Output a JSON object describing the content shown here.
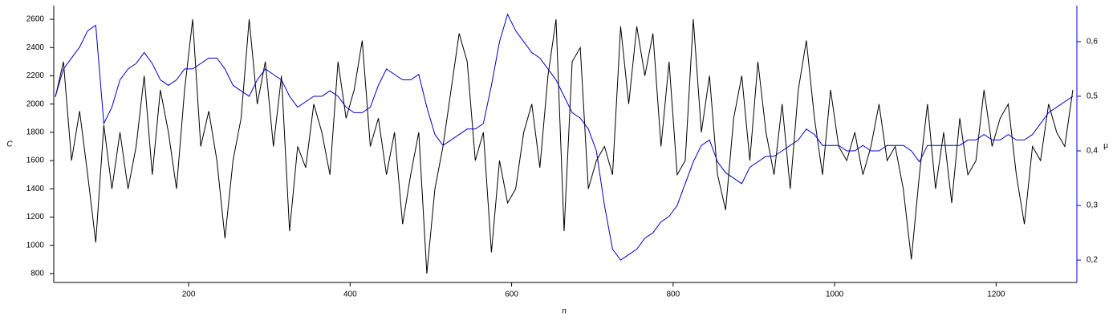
{
  "chart_data": {
    "type": "line",
    "x_label": "n",
    "y_label": "C",
    "y2_label": "μ",
    "x": [
      35,
      45,
      55,
      65,
      75,
      85,
      95,
      105,
      115,
      125,
      135,
      145,
      155,
      165,
      175,
      185,
      195,
      205,
      215,
      225,
      235,
      245,
      255,
      265,
      275,
      285,
      295,
      305,
      315,
      325,
      335,
      345,
      355,
      365,
      375,
      385,
      395,
      405,
      415,
      425,
      435,
      445,
      455,
      465,
      475,
      485,
      495,
      505,
      515,
      525,
      535,
      545,
      555,
      565,
      575,
      585,
      595,
      605,
      615,
      625,
      635,
      645,
      655,
      665,
      675,
      685,
      695,
      705,
      715,
      725,
      735,
      745,
      755,
      765,
      775,
      785,
      795,
      805,
      815,
      825,
      835,
      845,
      855,
      865,
      875,
      885,
      895,
      905,
      915,
      925,
      935,
      945,
      955,
      965,
      975,
      985,
      995,
      1005,
      1015,
      1025,
      1035,
      1045,
      1055,
      1065,
      1075,
      1085,
      1095,
      1105,
      1115,
      1125,
      1135,
      1145,
      1155,
      1165,
      1175,
      1185,
      1195,
      1205,
      1215,
      1225,
      1235,
      1245,
      1255,
      1265,
      1275,
      1285,
      1295
    ],
    "series": [
      {
        "name": "C",
        "color": "#000000",
        "axis": "y",
        "values": [
          2050,
          2300,
          1600,
          1950,
          1500,
          1020,
          1850,
          1400,
          1800,
          1400,
          1700,
          2200,
          1500,
          2100,
          1800,
          1400,
          2100,
          2600,
          1700,
          1950,
          1600,
          1050,
          1600,
          1900,
          2600,
          2000,
          2300,
          1700,
          2200,
          1100,
          1700,
          1550,
          2000,
          1800,
          1500,
          2300,
          1900,
          2100,
          2450,
          1700,
          1900,
          1500,
          1800,
          1150,
          1500,
          1800,
          800,
          1400,
          1700,
          2100,
          2500,
          2300,
          1600,
          1800,
          950,
          1600,
          1300,
          1400,
          1800,
          2000,
          1550,
          2200,
          2600,
          1100,
          2300,
          2400,
          1400,
          1600,
          1700,
          1500,
          2550,
          2000,
          2550,
          2200,
          2500,
          1700,
          2300,
          1500,
          1600,
          2600,
          1800,
          2200,
          1500,
          1250,
          1900,
          2200,
          1600,
          2300,
          1800,
          1500,
          2000,
          1400,
          2100,
          2450,
          1900,
          1500,
          2100,
          1700,
          1600,
          1800,
          1500,
          1700,
          2000,
          1600,
          1700,
          1400,
          900,
          1500,
          2000,
          1400,
          1800,
          1300,
          1900,
          1500,
          1600,
          2100,
          1700,
          1900,
          2000,
          1500,
          1150,
          1700,
          1600,
          2000,
          1800,
          1700,
          2100
        ]
      },
      {
        "name": "μ",
        "color": "#0000c8",
        "axis": "y2",
        "values": [
          0.5,
          0.55,
          0.57,
          0.59,
          0.62,
          0.63,
          0.45,
          0.48,
          0.53,
          0.55,
          0.56,
          0.58,
          0.56,
          0.53,
          0.52,
          0.53,
          0.55,
          0.55,
          0.56,
          0.57,
          0.57,
          0.55,
          0.52,
          0.51,
          0.5,
          0.53,
          0.55,
          0.54,
          0.53,
          0.5,
          0.48,
          0.49,
          0.5,
          0.5,
          0.51,
          0.5,
          0.48,
          0.47,
          0.47,
          0.48,
          0.52,
          0.55,
          0.54,
          0.53,
          0.53,
          0.54,
          0.48,
          0.43,
          0.41,
          0.42,
          0.43,
          0.44,
          0.44,
          0.45,
          0.52,
          0.6,
          0.65,
          0.62,
          0.6,
          0.58,
          0.57,
          0.55,
          0.53,
          0.5,
          0.47,
          0.46,
          0.44,
          0.4,
          0.3,
          0.22,
          0.2,
          0.21,
          0.22,
          0.24,
          0.25,
          0.27,
          0.28,
          0.3,
          0.34,
          0.38,
          0.41,
          0.42,
          0.38,
          0.36,
          0.35,
          0.34,
          0.37,
          0.38,
          0.39,
          0.39,
          0.4,
          0.41,
          0.42,
          0.44,
          0.43,
          0.41,
          0.41,
          0.41,
          0.4,
          0.4,
          0.41,
          0.4,
          0.4,
          0.41,
          0.41,
          0.41,
          0.4,
          0.38,
          0.41,
          0.41,
          0.41,
          0.41,
          0.41,
          0.42,
          0.42,
          0.43,
          0.42,
          0.42,
          0.43,
          0.42,
          0.42,
          0.43,
          0.45,
          0.47,
          0.48,
          0.49,
          0.5
        ]
      }
    ],
    "xlim": [
      33,
      1300
    ],
    "xticks": [
      200,
      400,
      600,
      800,
      1000,
      1200
    ],
    "ylim": [
      737,
      2697
    ],
    "yticks": [
      800,
      1000,
      1200,
      1400,
      1600,
      1800,
      2000,
      2200,
      2400,
      2600
    ],
    "y2lim": [
      0.159,
      0.666
    ],
    "y2ticks": [
      {
        "value": 0.2,
        "label": "0,2"
      },
      {
        "value": 0.3,
        "label": "0,3"
      },
      {
        "value": 0.4,
        "label": "0,4"
      },
      {
        "value": 0.5,
        "label": "0,5"
      },
      {
        "value": 0.6,
        "label": "0,6"
      }
    ]
  }
}
